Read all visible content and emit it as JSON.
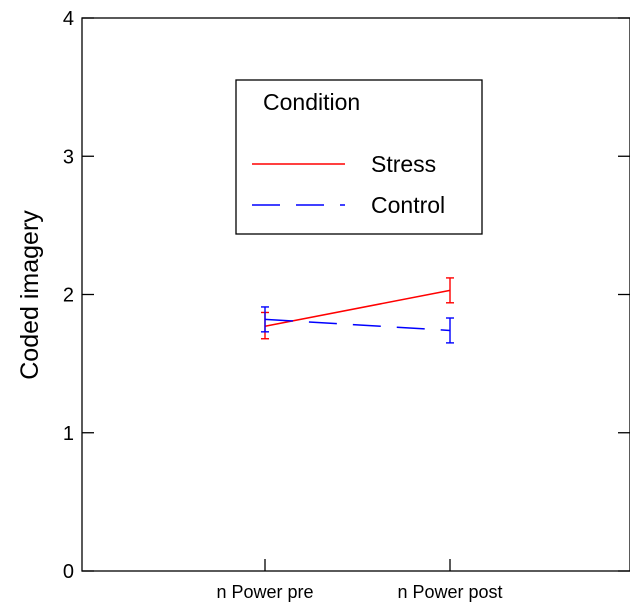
{
  "chart_data": {
    "type": "line",
    "title": "",
    "xlabel": "",
    "ylabel": "Coded imagery",
    "ylim": [
      0,
      4
    ],
    "yticks": [
      0,
      1,
      2,
      3,
      4
    ],
    "categories": [
      "n Power pre",
      "n Power post"
    ],
    "grid": false,
    "legend": {
      "title": "Condition",
      "placement": "top-center"
    },
    "series": [
      {
        "name": "Stress",
        "color": "#ff0000",
        "line_style": "solid",
        "values": [
          1.77,
          2.03
        ],
        "error_low": [
          1.68,
          1.94
        ],
        "error_high": [
          1.87,
          2.12
        ]
      },
      {
        "name": "Control",
        "color": "#0000ff",
        "line_style": "dashed",
        "values": [
          1.82,
          1.74
        ],
        "error_low": [
          1.73,
          1.65
        ],
        "error_high": [
          1.91,
          1.83
        ]
      }
    ]
  }
}
